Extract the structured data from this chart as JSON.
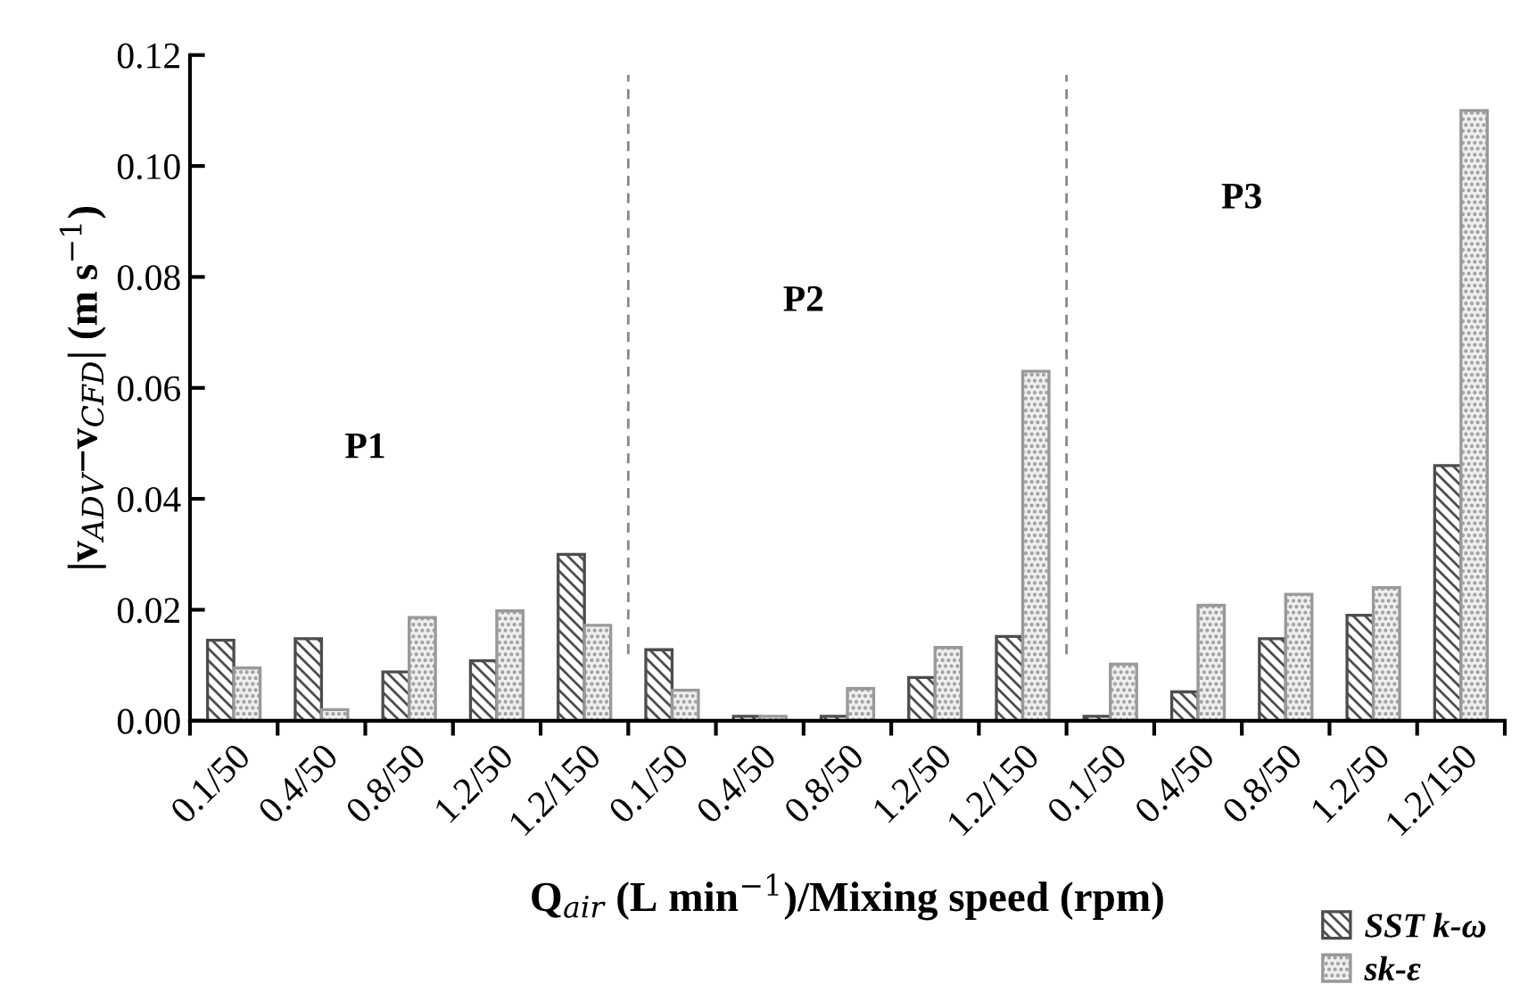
{
  "chart_data": {
    "type": "bar",
    "xlabel": "Q$_{air}$ (L min$^{−1}$)/Mixing speed (rpm)",
    "ylabel": "|v$_{ADV}$−v$_{CFD}$| (m s$^{−1}$)",
    "categories": [
      "0.1/50",
      "0.4/50",
      "0.8/50",
      "1.2/50",
      "1.2/150",
      "0.1/50",
      "0.4/50",
      "0.8/50",
      "1.2/50",
      "1.2/150",
      "0.1/50",
      "0.4/50",
      "0.8/50",
      "1.2/50",
      "1.2/150"
    ],
    "series": [
      {
        "name": "SST k-ω",
        "color": "#4d4d4d",
        "values": [
          0.0145,
          0.0148,
          0.0088,
          0.0108,
          0.03,
          0.0128,
          0.0008,
          0.0008,
          0.0078,
          0.0152,
          0.0008,
          0.0052,
          0.0148,
          0.019,
          0.046
        ]
      },
      {
        "name": "sk-ε",
        "color": "#999999",
        "values": [
          0.0095,
          0.002,
          0.0186,
          0.0198,
          0.0172,
          0.0055,
          0.0008,
          0.0058,
          0.0132,
          0.063,
          0.0102,
          0.0208,
          0.0228,
          0.024,
          0.11
        ]
      }
    ],
    "ylim": [
      0,
      0.12
    ],
    "yticks": [
      {
        "value": 0,
        "label": "0.00"
      },
      {
        "value": 0.02,
        "label": "0.02"
      },
      {
        "value": 0.04,
        "label": "0.04"
      },
      {
        "value": 0.06,
        "label": "0.06"
      },
      {
        "value": 0.08,
        "label": "0.08"
      },
      {
        "value": 0.1,
        "label": "0.10"
      },
      {
        "value": 0.12,
        "label": "0.12"
      }
    ],
    "annotations": [
      "P1",
      "P2",
      "P3"
    ],
    "legend": "bottom right",
    "grid": false
  }
}
